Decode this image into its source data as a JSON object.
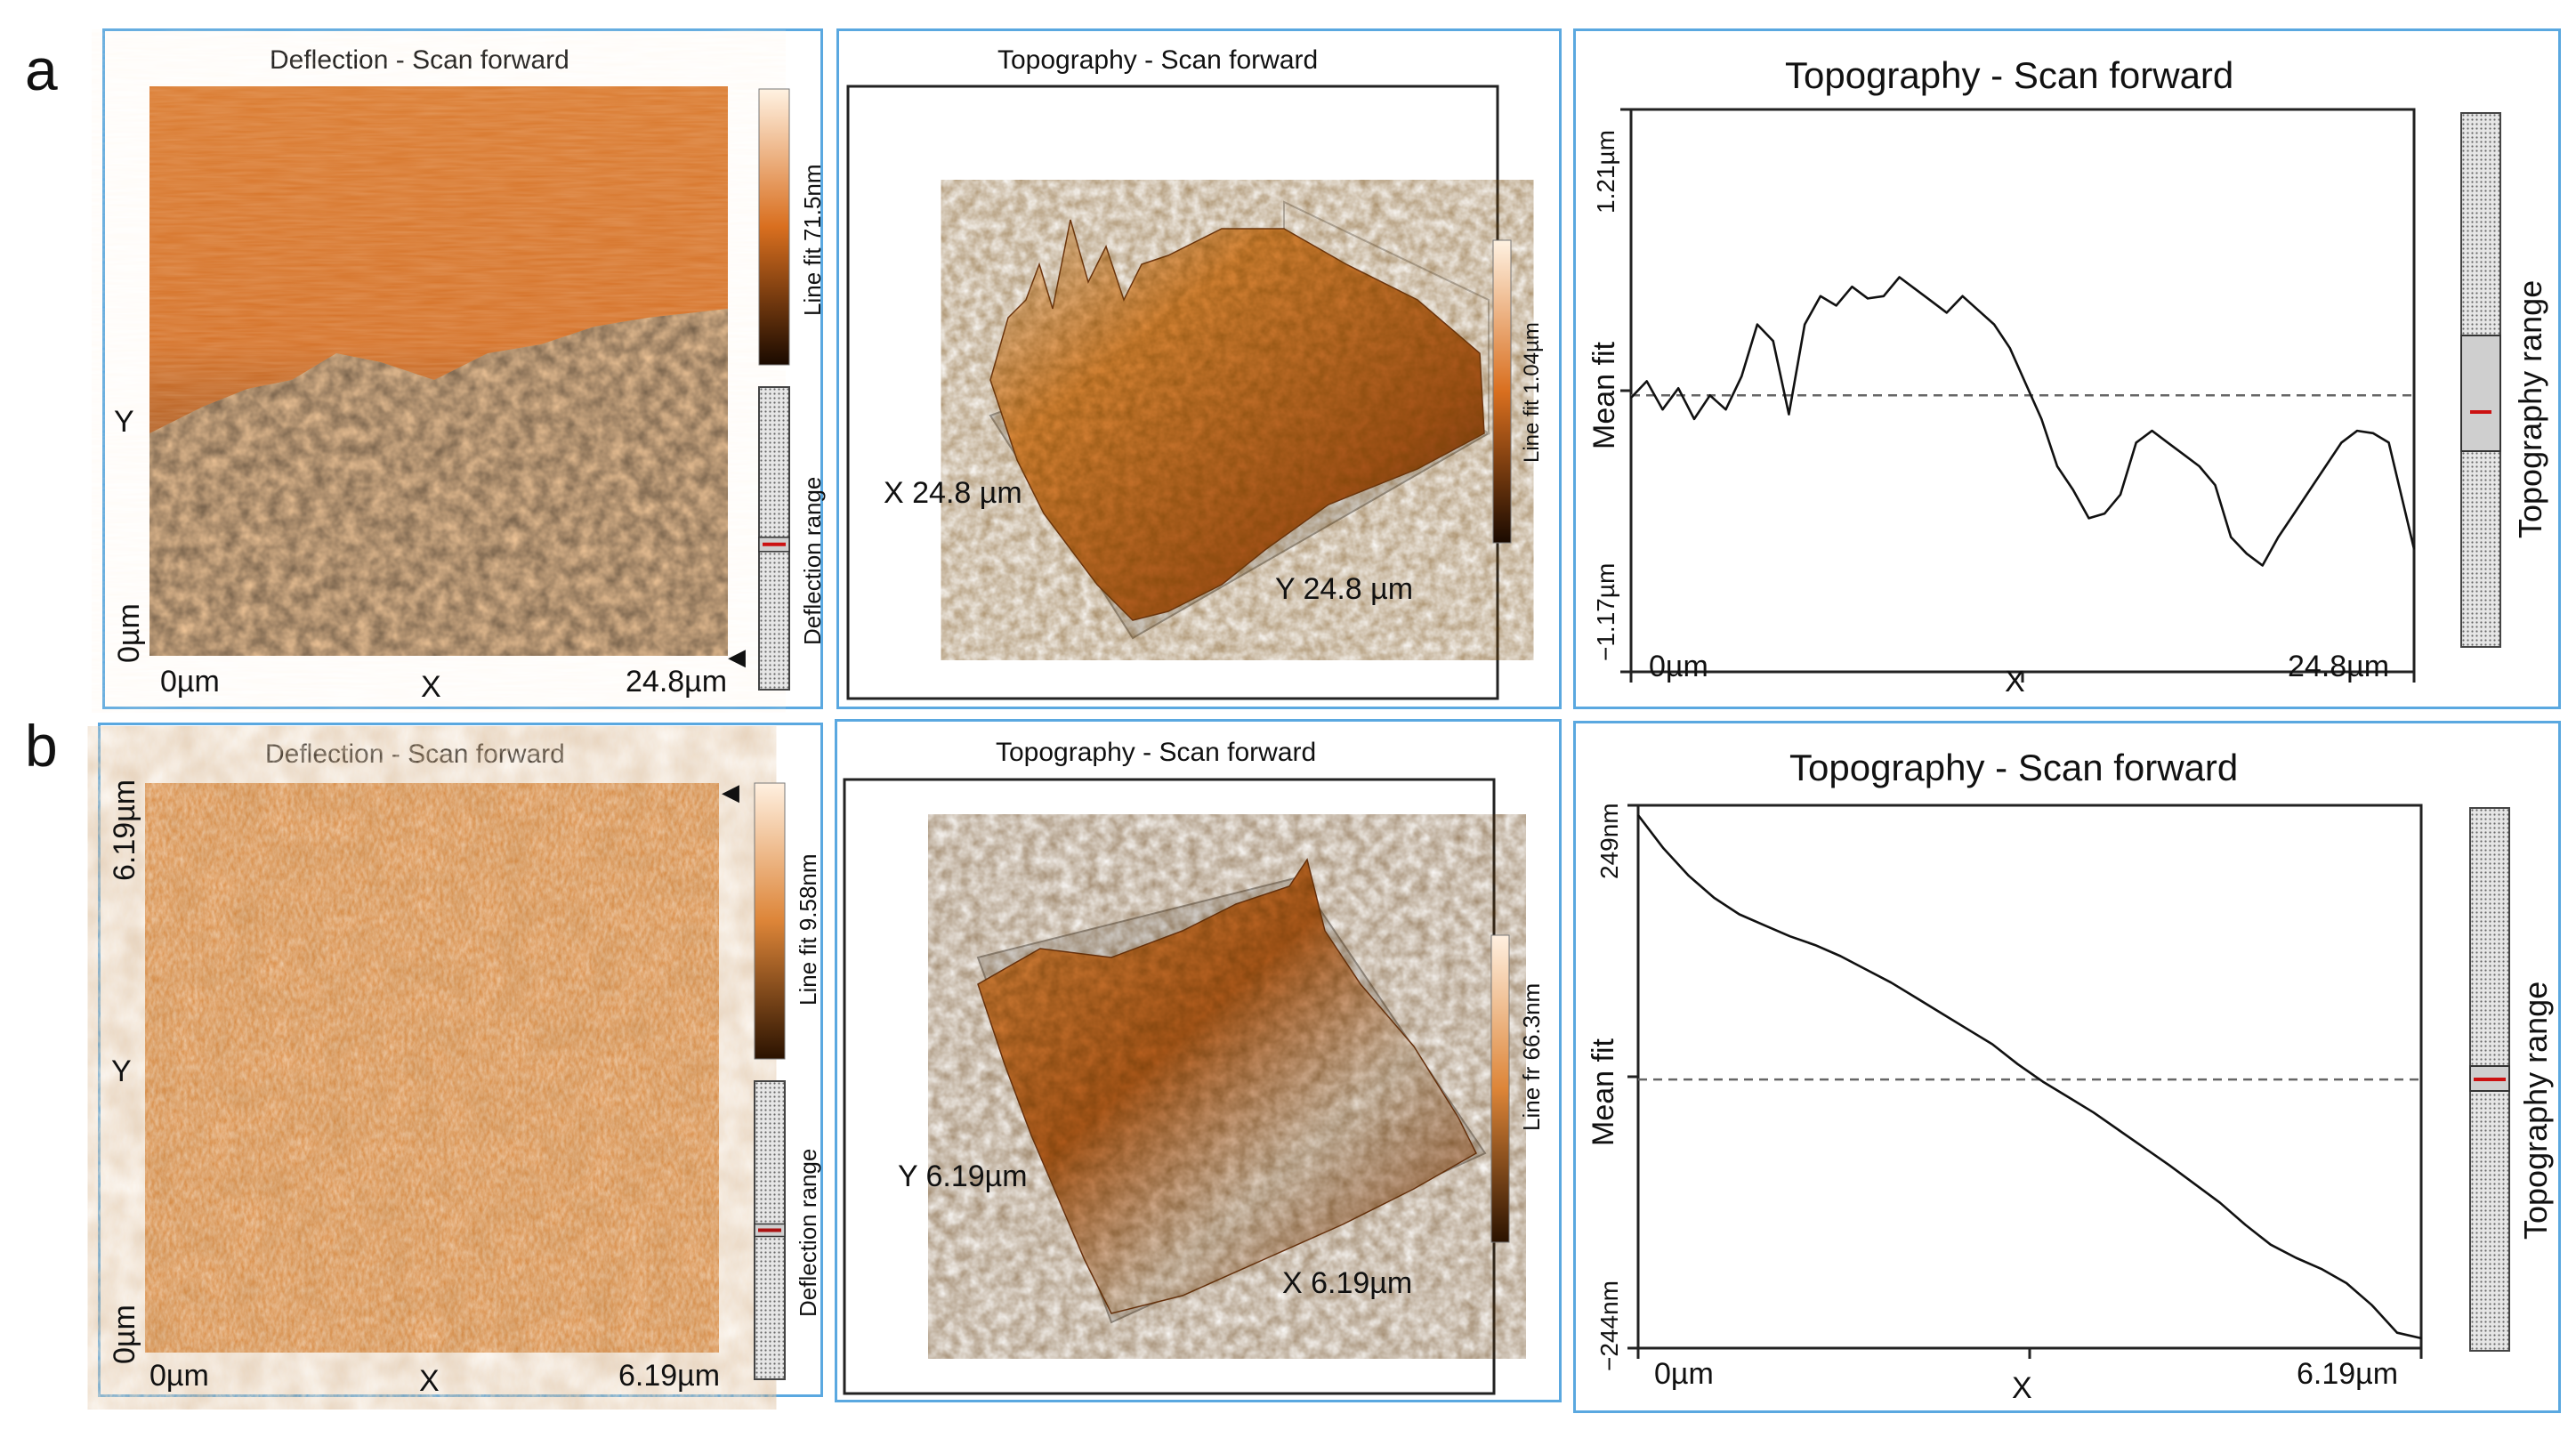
{
  "figure": {
    "rows": [
      {
        "letter": "a",
        "deflection": {
          "title": "Deflection - Scan forward",
          "x_label": "X",
          "y_label": "Y",
          "x_start": "0µm",
          "x_end": "24.8µm",
          "y_start": "0µm",
          "y_end": "",
          "colorbar_label": "Line fit 71.5nm",
          "range_label": "Deflection range",
          "range_marker_fraction": 0.52,
          "colors": [
            "#1a0a00",
            "#d96f1f",
            "#ffe9d2"
          ]
        },
        "topography3d": {
          "title": "Topography - Scan forward",
          "axis_label_1": "X 24.8 µm",
          "axis_label_2": "Y 24.8 µm",
          "colorbar_label": "Line fit 1.04µm"
        },
        "profile": {
          "title": "Topography - Scan forward",
          "ylabel": "Mean fit",
          "y_max_label": "1.21µm",
          "y_min_label": "−1.17µm",
          "x_start": "0µm",
          "x_label": "X",
          "x_end": "24.8µm",
          "range_label": "Topography range",
          "range_marker_fraction": 0.56
        }
      },
      {
        "letter": "b",
        "deflection": {
          "title": "Deflection - Scan forward",
          "x_label": "X",
          "y_label": "Y",
          "x_start": "0µm",
          "x_end": "6.19µm",
          "y_start": "0µm",
          "y_end": "6.19µm",
          "colorbar_label": "Line fit 9.58nm",
          "range_label": "Deflection range",
          "range_marker_fraction": 0.5,
          "colors": [
            "#2a1200",
            "#dd8538",
            "#fff0e0"
          ]
        },
        "topography3d": {
          "title": "Topography - Scan forward",
          "axis_label_1": "Y 6.19µm",
          "axis_label_2": "X 6.19µm",
          "colorbar_label": "Line fr 66.3nm"
        },
        "profile": {
          "title": "Topography - Scan forward",
          "ylabel": "Mean fit",
          "y_max_label": "249nm",
          "y_min_label": "−244nm",
          "x_start": "0µm",
          "x_label": "X",
          "x_end": "6.19µm",
          "range_label": "Topography range",
          "range_marker_fraction": 0.5
        }
      }
    ]
  },
  "chart_data": [
    {
      "type": "line",
      "title": "Topography - Scan forward",
      "xlabel": "X",
      "ylabel": "Mean fit",
      "x_unit": "µm",
      "y_unit": "µm",
      "xlim": [
        0,
        24.8
      ],
      "ylim": [
        -1.17,
        1.21
      ],
      "reference_line_y": 0,
      "x": [
        0,
        0.5,
        1.0,
        1.5,
        2.0,
        2.5,
        3.0,
        3.5,
        4.0,
        4.5,
        5.0,
        5.5,
        6.0,
        6.5,
        7.0,
        7.5,
        8.0,
        8.5,
        9.0,
        9.5,
        10.0,
        10.5,
        11.0,
        11.5,
        12.0,
        12.5,
        13.0,
        13.5,
        14.0,
        14.5,
        15.0,
        15.5,
        16.0,
        16.5,
        17.0,
        17.5,
        18.0,
        18.5,
        19.0,
        19.5,
        20.0,
        20.5,
        21.0,
        21.5,
        22.0,
        22.5,
        23.0,
        23.5,
        24.0,
        24.8
      ],
      "y": [
        -0.01,
        0.06,
        -0.06,
        0.03,
        -0.1,
        0.0,
        -0.06,
        0.08,
        0.3,
        0.23,
        -0.08,
        0.3,
        0.42,
        0.38,
        0.46,
        0.41,
        0.42,
        0.5,
        0.45,
        0.4,
        0.35,
        0.42,
        0.36,
        0.3,
        0.2,
        0.05,
        -0.1,
        -0.3,
        -0.4,
        -0.52,
        -0.5,
        -0.42,
        -0.2,
        -0.15,
        -0.2,
        -0.25,
        -0.3,
        -0.38,
        -0.6,
        -0.67,
        -0.72,
        -0.6,
        -0.5,
        -0.4,
        -0.3,
        -0.2,
        -0.15,
        -0.16,
        -0.2,
        -0.65
      ]
    },
    {
      "type": "line",
      "title": "Topography - Scan forward",
      "xlabel": "X",
      "ylabel": "Mean fit",
      "x_unit": "µm",
      "y_unit": "nm",
      "xlim": [
        0,
        6.19
      ],
      "ylim": [
        -244,
        249
      ],
      "reference_line_y": 0,
      "x": [
        0,
        0.2,
        0.4,
        0.6,
        0.8,
        1.0,
        1.2,
        1.4,
        1.6,
        1.8,
        2.0,
        2.2,
        2.4,
        2.6,
        2.8,
        3.0,
        3.2,
        3.4,
        3.6,
        3.8,
        4.0,
        4.2,
        4.4,
        4.6,
        4.8,
        5.0,
        5.2,
        5.4,
        5.6,
        5.8,
        6.0,
        6.19
      ],
      "y": [
        240,
        210,
        185,
        165,
        150,
        140,
        130,
        122,
        112,
        100,
        88,
        74,
        60,
        46,
        32,
        14,
        -2,
        -16,
        -30,
        -46,
        -62,
        -78,
        -95,
        -112,
        -132,
        -150,
        -162,
        -172,
        -185,
        -205,
        -230,
        -235
      ]
    }
  ]
}
